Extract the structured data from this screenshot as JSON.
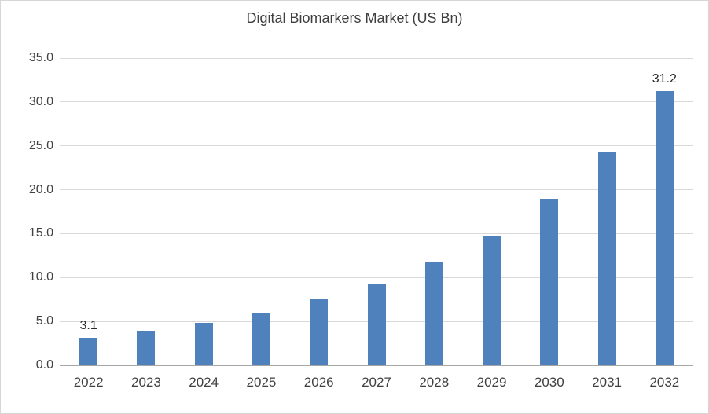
{
  "chart_data": {
    "type": "bar",
    "title": "Digital Biomarkers Market (US Bn)",
    "categories": [
      "2022",
      "2023",
      "2024",
      "2025",
      "2026",
      "2027",
      "2028",
      "2029",
      "2030",
      "2031",
      "2032"
    ],
    "values": [
      3.1,
      3.9,
      4.8,
      6.0,
      7.5,
      9.3,
      11.7,
      14.8,
      19.0,
      24.3,
      31.2
    ],
    "data_labels": {
      "2022": "3.1",
      "2032": "31.2"
    },
    "xlabel": "",
    "ylabel": "",
    "ylim": [
      0,
      35
    ],
    "ytick_step": 5,
    "ytick_labels": [
      "0.0",
      "5.0",
      "10.0",
      "15.0",
      "20.0",
      "25.0",
      "30.0",
      "35.0"
    ],
    "grid": true,
    "legend": "none",
    "bar_color": "#4f81bd",
    "gridline_color": "#d9d9d9",
    "axis_line_color": "#a6a6a6"
  }
}
